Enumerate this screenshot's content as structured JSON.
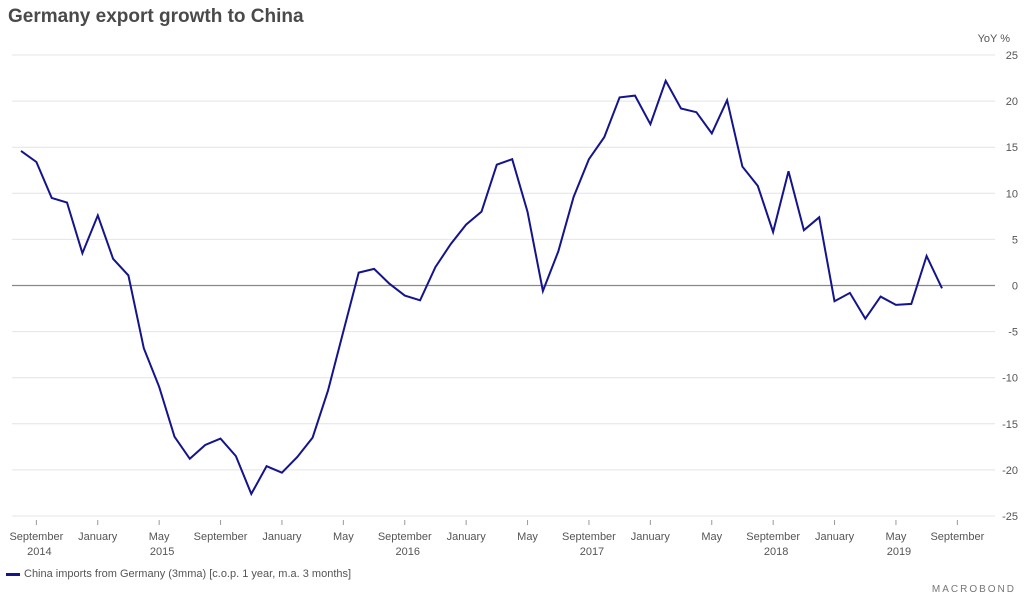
{
  "title": "Germany export growth to China",
  "brand": "MACROBOND",
  "colors": {
    "series": "#14148c",
    "zero_line": "#888888",
    "grid": "#e4e4e4"
  },
  "chart_data": {
    "type": "line",
    "title": "Germany export growth to China",
    "ylabel": "YoY %",
    "ylim": [
      -25,
      25
    ],
    "yticks": [
      25,
      20,
      15,
      10,
      5,
      0,
      -5,
      -10,
      -15,
      -20,
      -25
    ],
    "grid": true,
    "legend_position": "bottom-left",
    "x_tick_labels": [
      {
        "month": "September",
        "year": "2014"
      },
      {
        "month": "January",
        "year": ""
      },
      {
        "month": "May",
        "year": "2015"
      },
      {
        "month": "September",
        "year": ""
      },
      {
        "month": "January",
        "year": ""
      },
      {
        "month": "May",
        "year": ""
      },
      {
        "month": "September",
        "year": "2016"
      },
      {
        "month": "January",
        "year": ""
      },
      {
        "month": "May",
        "year": ""
      },
      {
        "month": "September",
        "year": "2017"
      },
      {
        "month": "January",
        "year": ""
      },
      {
        "month": "May",
        "year": ""
      },
      {
        "month": "September",
        "year": "2018"
      },
      {
        "month": "January",
        "year": ""
      },
      {
        "month": "May",
        "year": "2019"
      },
      {
        "month": "September",
        "year": ""
      }
    ],
    "series": [
      {
        "name": "China imports from Germany (3mma) [c.o.p. 1 year, m.a. 3 months]",
        "x": [
          "2014-08",
          "2014-09",
          "2014-10",
          "2014-11",
          "2014-12",
          "2015-01",
          "2015-02",
          "2015-03",
          "2015-04",
          "2015-05",
          "2015-06",
          "2015-07",
          "2015-08",
          "2015-09",
          "2015-10",
          "2015-11",
          "2015-12",
          "2016-01",
          "2016-02",
          "2016-03",
          "2016-04",
          "2016-05",
          "2016-06",
          "2016-07",
          "2016-08",
          "2016-09",
          "2016-10",
          "2016-11",
          "2016-12",
          "2017-01",
          "2017-02",
          "2017-03",
          "2017-04",
          "2017-05",
          "2017-06",
          "2017-07",
          "2017-08",
          "2017-09",
          "2017-10",
          "2017-11",
          "2017-12",
          "2018-01",
          "2018-02",
          "2018-03",
          "2018-04",
          "2018-05",
          "2018-06",
          "2018-07",
          "2018-08",
          "2018-09",
          "2018-10",
          "2018-11",
          "2018-12",
          "2019-01",
          "2019-02",
          "2019-03",
          "2019-04",
          "2019-05",
          "2019-06",
          "2019-07",
          "2019-08"
        ],
        "values": [
          14.6,
          13.4,
          9.5,
          9.0,
          3.5,
          7.6,
          2.9,
          1.1,
          -6.8,
          -11.0,
          -16.4,
          -18.8,
          -17.3,
          -16.6,
          -18.5,
          -22.6,
          -19.6,
          -20.3,
          -18.6,
          -16.5,
          -11.4,
          -5.0,
          1.4,
          1.8,
          0.2,
          -1.1,
          -1.6,
          2.0,
          4.5,
          6.6,
          8.0,
          13.1,
          13.7,
          8.0,
          -0.6,
          3.7,
          9.6,
          13.7,
          16.1,
          20.4,
          20.6,
          17.5,
          22.2,
          19.2,
          18.8,
          16.5,
          20.1,
          12.9,
          10.8,
          5.8,
          12.4,
          6.0,
          7.4,
          -1.7,
          -0.8,
          -3.6,
          -1.2,
          -2.1,
          -2.0,
          3.2,
          -0.3
        ]
      }
    ]
  }
}
